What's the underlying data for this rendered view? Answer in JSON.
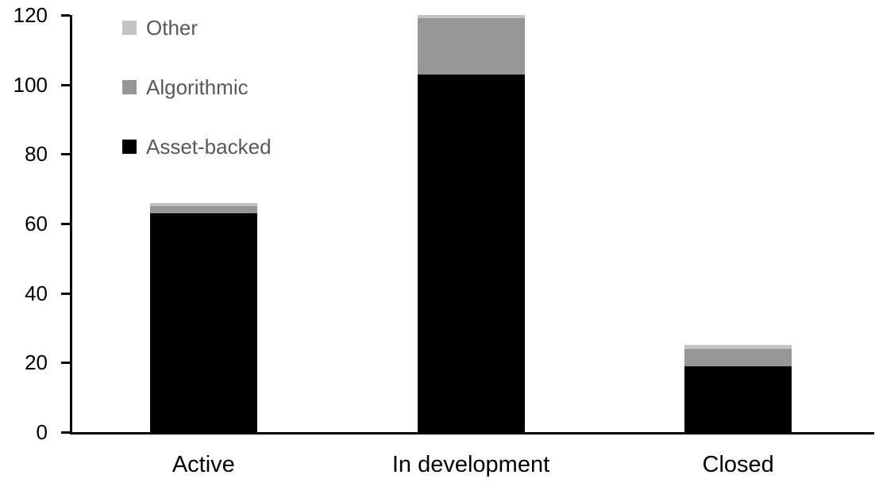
{
  "chart_data": {
    "type": "bar",
    "stacked": true,
    "title": "",
    "xlabel": "",
    "ylabel": "",
    "categories": [
      "Active",
      "In development",
      "Closed"
    ],
    "series": [
      {
        "name": "Asset-backed",
        "color": "#000000",
        "values": [
          63,
          103,
          19
        ]
      },
      {
        "name": "Algorithmic",
        "color": "#969696",
        "values": [
          2,
          16,
          5
        ]
      },
      {
        "name": "Other",
        "color": "#c3c3c3",
        "values": [
          1,
          1,
          1
        ]
      }
    ],
    "totals": [
      66,
      120,
      25
    ],
    "ylim": [
      0,
      120
    ],
    "yticks": [
      0,
      20,
      40,
      60,
      80,
      100,
      120
    ],
    "grid": false,
    "legend_position": "top-left",
    "legend_order": [
      "Other",
      "Algorithmic",
      "Asset-backed"
    ],
    "legend_text_color": "#595959",
    "axis_color": "#000000",
    "background_color": "#ffffff"
  }
}
